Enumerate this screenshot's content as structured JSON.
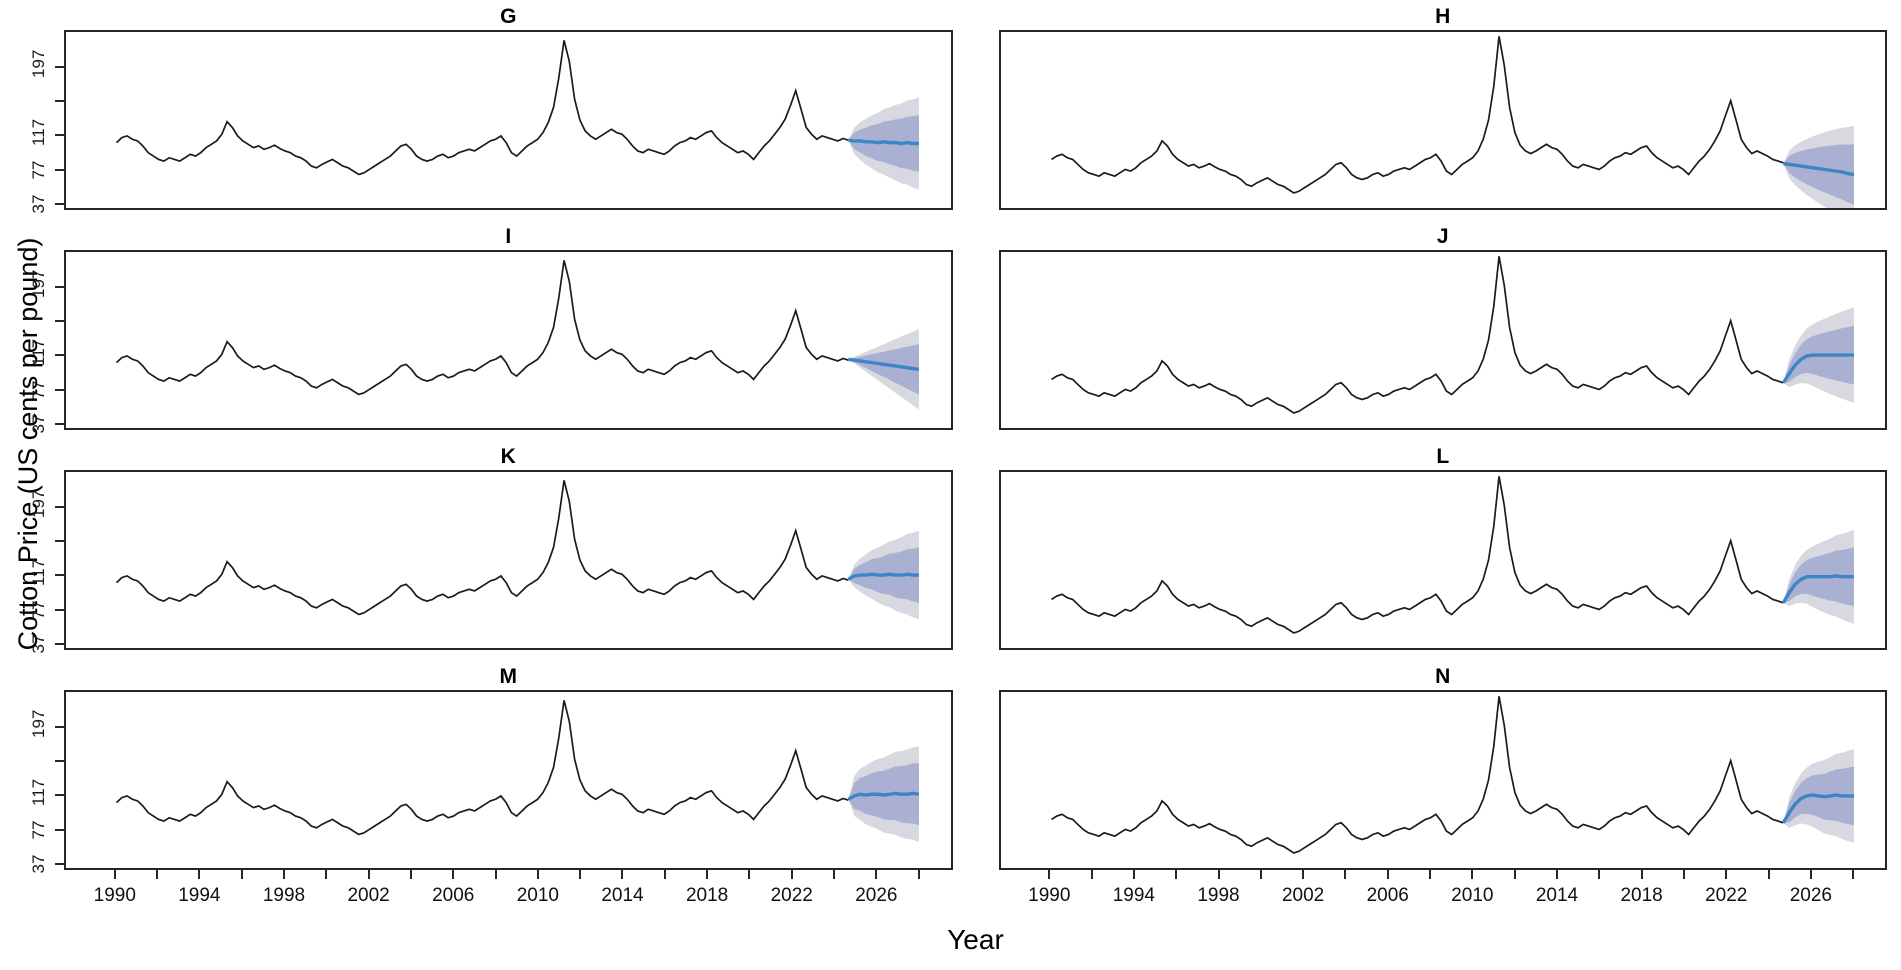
{
  "chart_data": {
    "type": "line",
    "layout": "grid-4x2-small-multiples",
    "title": "",
    "xlabel": "Year",
    "ylabel": "Cotton Price (US cents per pound)",
    "grid": false,
    "legend": "none",
    "xlim": [
      1987.6,
      2029.6
    ],
    "ylim": [
      30,
      240
    ],
    "x_ticks": {
      "start": 1990,
      "step": 2,
      "end": 2028
    },
    "x_tick_labels": [
      "1990",
      "1994",
      "1998",
      "2002",
      "2006",
      "2010",
      "2014",
      "2018",
      "2022",
      "2026"
    ],
    "y_ticks": [
      {
        "v": 37,
        "label": "37"
      },
      {
        "v": 77,
        "label": "77"
      },
      {
        "v": 117,
        "label": "117"
      },
      {
        "v": 157,
        "label": ""
      },
      {
        "v": 197,
        "label": "197"
      }
    ],
    "history_series": {
      "main": {
        "start": 1990.0,
        "step": 0.25,
        "values": [
          108,
          114,
          116,
          112,
          110,
          104,
          96,
          92,
          88,
          86,
          90,
          88,
          86,
          90,
          94,
          92,
          96,
          102,
          106,
          110,
          118,
          133,
          126,
          116,
          110,
          106,
          102,
          104,
          100,
          102,
          105,
          101,
          98,
          96,
          92,
          90,
          86,
          80,
          78,
          82,
          85,
          88,
          84,
          80,
          78,
          74,
          70,
          72,
          76,
          80,
          84,
          88,
          92,
          98,
          104,
          106,
          100,
          92,
          88,
          86,
          88,
          92,
          94,
          90,
          92,
          96,
          98,
          100,
          98,
          102,
          106,
          110,
          112,
          116,
          108,
          96,
          92,
          98,
          104,
          108,
          112,
          120,
          132,
          150,
          185,
          230,
          205,
          160,
          135,
          122,
          116,
          112,
          116,
          120,
          124,
          120,
          118,
          112,
          104,
          98,
          96,
          100,
          98,
          96,
          94,
          98,
          104,
          108,
          110,
          114,
          112,
          116,
          120,
          122,
          114,
          108,
          104,
          100,
          96,
          98,
          94,
          88,
          96,
          104,
          110,
          118,
          126,
          136,
          152,
          170,
          148,
          126,
          118,
          112,
          116,
          114,
          112,
          110,
          113,
          111
        ]
      },
      "lower": {
        "start": 1990.0,
        "step": 0.25,
        "values": [
          88,
          92,
          94,
          90,
          88,
          82,
          76,
          72,
          70,
          68,
          72,
          70,
          68,
          72,
          76,
          74,
          78,
          84,
          88,
          92,
          98,
          110,
          104,
          94,
          88,
          84,
          80,
          82,
          78,
          80,
          83,
          79,
          76,
          74,
          70,
          68,
          64,
          58,
          56,
          60,
          63,
          66,
          62,
          58,
          56,
          52,
          48,
          50,
          54,
          58,
          62,
          66,
          70,
          76,
          82,
          84,
          78,
          70,
          66,
          64,
          66,
          70,
          72,
          68,
          70,
          74,
          76,
          78,
          76,
          80,
          84,
          88,
          90,
          94,
          86,
          74,
          70,
          76,
          82,
          86,
          90,
          98,
          112,
          135,
          175,
          235,
          200,
          150,
          120,
          105,
          98,
          95,
          98,
          102,
          106,
          102,
          100,
          94,
          86,
          80,
          78,
          82,
          80,
          78,
          76,
          80,
          86,
          90,
          92,
          96,
          94,
          98,
          102,
          104,
          96,
          90,
          86,
          82,
          78,
          80,
          76,
          70,
          78,
          86,
          92,
          100,
          110,
          122,
          140,
          158,
          135,
          112,
          102,
          95,
          98,
          95,
          92,
          88,
          86,
          84
        ]
      }
    },
    "forecast_span": {
      "start": 2024.75,
      "end": 2028.1
    },
    "panels": [
      {
        "title": "G",
        "series": "main",
        "mean": [
          111,
          110,
          110,
          109,
          109,
          108,
          109,
          108,
          108,
          107,
          108,
          107,
          107
        ],
        "h80": 34,
        "h95": 55,
        "exp": 0.5
      },
      {
        "title": "H",
        "series": "lower",
        "mean": [
          83,
          82,
          81,
          80,
          79,
          78,
          77,
          76,
          75,
          74,
          73,
          71,
          70
        ],
        "h80": 36,
        "h95": 58,
        "exp": 0.5
      },
      {
        "title": "I",
        "series": "main",
        "mean": [
          112,
          111,
          110,
          109,
          108,
          107,
          106,
          105,
          104,
          103,
          102,
          101,
          100
        ],
        "h80": 30,
        "h95": 48,
        "exp": 1.0
      },
      {
        "title": "J",
        "series": "lower",
        "mean": [
          84,
          95,
          105,
          112,
          116,
          117,
          117,
          117,
          117,
          117,
          117,
          117,
          117
        ],
        "h80": 35,
        "h95": 57,
        "exp": 0.5
      },
      {
        "title": "K",
        "series": "main",
        "mean": [
          112,
          116,
          117,
          117,
          118,
          117,
          117,
          118,
          117,
          117,
          118,
          117,
          117
        ],
        "h80": 33,
        "h95": 53,
        "exp": 0.55
      },
      {
        "title": "L",
        "series": "lower",
        "mean": [
          84,
          96,
          106,
          112,
          115,
          115,
          115,
          115,
          115,
          116,
          115,
          115,
          115
        ],
        "h80": 35,
        "h95": 56,
        "exp": 0.5
      },
      {
        "title": "M",
        "series": "main",
        "mean": [
          112,
          116,
          118,
          117,
          118,
          118,
          117,
          118,
          119,
          118,
          118,
          119,
          118
        ],
        "h80": 37,
        "h95": 57,
        "exp": 0.35
      },
      {
        "title": "N",
        "series": "lower",
        "mean": [
          84,
          96,
          106,
          113,
          116,
          117,
          116,
          115,
          116,
          117,
          116,
          116,
          116
        ],
        "h80": 35,
        "h95": 56,
        "exp": 0.45
      }
    ],
    "colors": {
      "history_line": "#1b1b1b",
      "forecast_line": "#3d85c6",
      "pi80_band": "#a9b0d1",
      "pi95_band": "#d8d9e0",
      "panel_border": "#262626"
    }
  }
}
